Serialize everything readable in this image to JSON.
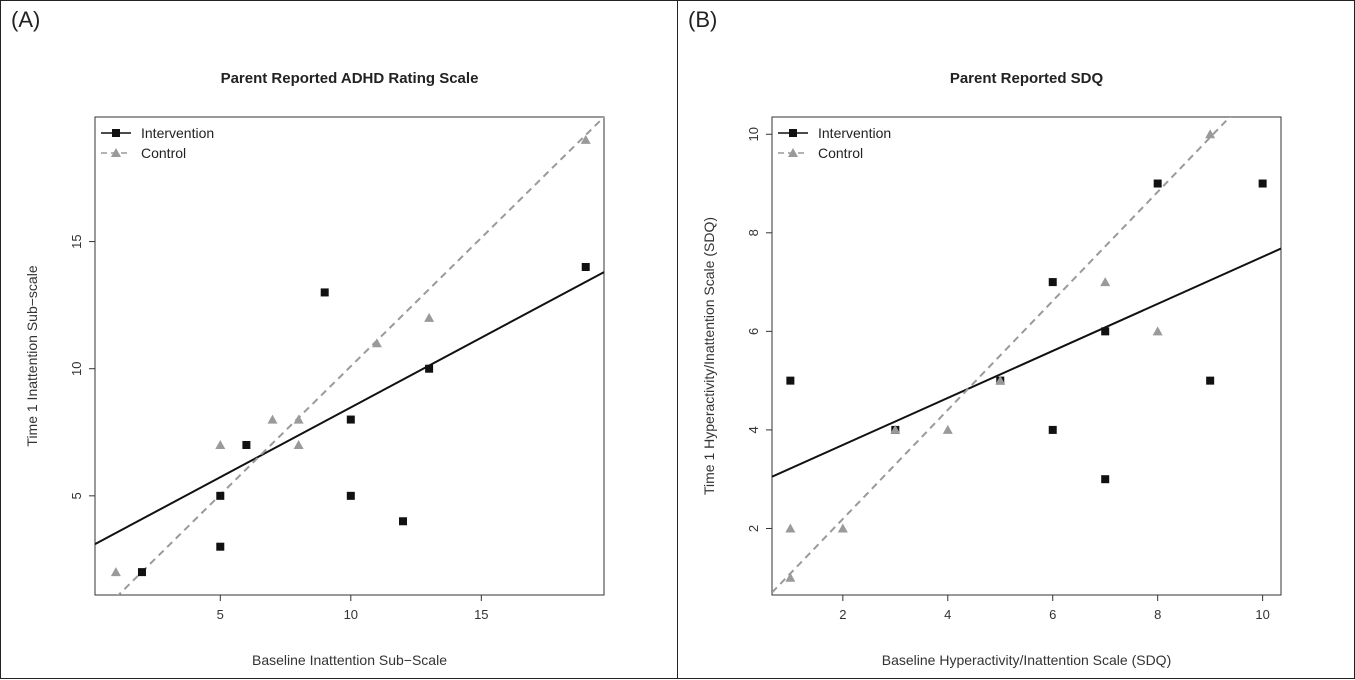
{
  "panels": [
    {
      "label": "(A)"
    },
    {
      "label": "(B)"
    }
  ],
  "colors": {
    "intervention": "#111111",
    "control": "#9a9a9a"
  },
  "chart_data": [
    {
      "type": "scatter",
      "title": "Parent Reported ADHD Rating Scale",
      "xlabel": "Baseline Inattention Sub−Scale",
      "ylabel": "Time 1 Inattention Sub−scale",
      "xlim": [
        0.2,
        19.7
      ],
      "ylim": [
        1.1,
        19.9
      ],
      "xticks": [
        5,
        10,
        15
      ],
      "yticks": [
        5,
        10,
        15
      ],
      "legend_position": "top-left",
      "grid": false,
      "series": [
        {
          "name": "Intervention",
          "marker": "square",
          "line": "solid",
          "x": [
            2,
            5,
            5,
            6,
            9,
            10,
            10,
            12,
            13,
            19
          ],
          "y": [
            2,
            3,
            5,
            7,
            13,
            8,
            5,
            4,
            10,
            14
          ],
          "fit": [
            0.2,
            3.1,
            19.7,
            13.8
          ]
        },
        {
          "name": "Control",
          "marker": "triangle",
          "line": "dashed",
          "x": [
            1,
            5,
            7,
            8,
            8,
            11,
            13,
            19
          ],
          "y": [
            2,
            7,
            8,
            8,
            7,
            11,
            12,
            19
          ],
          "fit": [
            1.0,
            1.0,
            19.7,
            19.9
          ]
        }
      ]
    },
    {
      "type": "scatter",
      "title": "Parent Reported SDQ",
      "xlabel": "Baseline Hyperactivity/Inattention Scale (SDQ)",
      "ylabel": "Time 1 Hyperactivity/Inattention Scale (SDQ)",
      "xlim": [
        0.65,
        10.35
      ],
      "ylim": [
        0.65,
        10.35
      ],
      "xticks": [
        2,
        4,
        6,
        8,
        10
      ],
      "yticks": [
        2,
        4,
        6,
        8,
        10
      ],
      "legend_position": "top-left",
      "grid": false,
      "series": [
        {
          "name": "Intervention",
          "marker": "square",
          "line": "solid",
          "x": [
            1,
            3,
            5,
            6,
            6,
            7,
            7,
            8,
            9,
            10
          ],
          "y": [
            5,
            4,
            5,
            7,
            4,
            6,
            3,
            9,
            5,
            9
          ],
          "fit": [
            0.65,
            3.05,
            10.35,
            7.68
          ]
        },
        {
          "name": "Control",
          "marker": "triangle",
          "line": "dashed",
          "x": [
            1,
            1,
            2,
            3,
            4,
            5,
            7,
            8,
            9
          ],
          "y": [
            2,
            1,
            2,
            4,
            4,
            5,
            7,
            6,
            10
          ],
          "fit": [
            0.65,
            0.7,
            9.6,
            10.6
          ]
        }
      ]
    }
  ]
}
